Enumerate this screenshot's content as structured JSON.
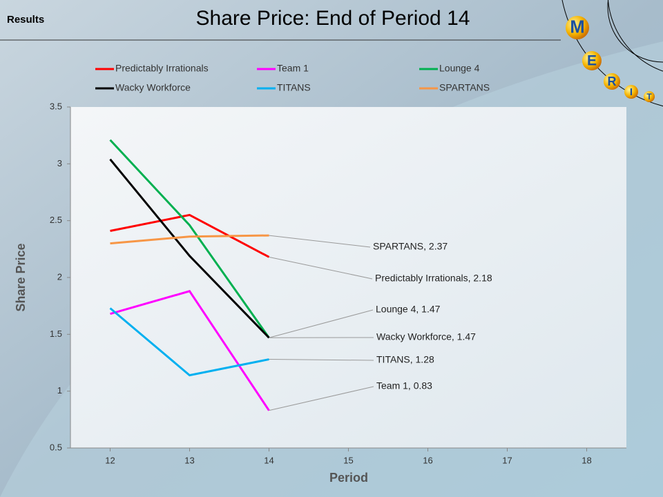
{
  "header": {
    "label": "Results"
  },
  "logo": [
    "M",
    "E",
    "R",
    "I",
    "T"
  ],
  "chart_data": {
    "type": "line",
    "title": "Share Price: End of Period 14",
    "xlabel": "Period",
    "ylabel": "Share Price",
    "x": [
      12,
      13,
      14,
      15,
      16,
      17,
      18
    ],
    "xlim": [
      11.5,
      18.5
    ],
    "xticks": [
      12,
      13,
      14,
      15,
      16,
      17,
      18
    ],
    "ylim": [
      0.5,
      3.5
    ],
    "yticks": [
      0.5,
      1,
      1.5,
      2,
      2.5,
      3,
      3.5
    ],
    "series": [
      {
        "name": "Predictably Irrationals",
        "color": "#ff0000",
        "values": [
          2.41,
          2.55,
          2.18,
          null,
          null,
          null,
          null
        ],
        "value_labels": [
          null,
          null,
          "Predictably Irrationals,  2.18",
          null,
          null,
          null,
          null
        ]
      },
      {
        "name": "Team 1",
        "color": "#ff00ff",
        "values": [
          1.68,
          1.88,
          0.83,
          null,
          null,
          null,
          null
        ],
        "value_labels": [
          null,
          null,
          "Team 1, 0.83",
          null,
          null,
          null,
          null
        ]
      },
      {
        "name": "Lounge 4",
        "color": "#00b050",
        "values": [
          3.21,
          2.46,
          1.47,
          null,
          null,
          null,
          null
        ],
        "value_labels": [
          null,
          null,
          "Lounge 4, 1.47",
          null,
          null,
          null,
          null
        ]
      },
      {
        "name": "Wacky Workforce",
        "color": "#000000",
        "values": [
          3.04,
          2.19,
          1.47,
          null,
          null,
          null,
          null
        ],
        "value_labels": [
          null,
          null,
          "Wacky Workforce, 1.47",
          null,
          null,
          null,
          null
        ]
      },
      {
        "name": "TITANS",
        "color": "#00b0f0",
        "values": [
          1.73,
          1.14,
          1.28,
          null,
          null,
          null,
          null
        ],
        "value_labels": [
          null,
          null,
          "TITANS,  1.28",
          null,
          null,
          null,
          null
        ]
      },
      {
        "name": "SPARTANS",
        "color": "#f79646",
        "values": [
          2.3,
          2.36,
          2.37,
          null,
          null,
          null,
          null
        ],
        "value_labels": [
          null,
          null,
          "SPARTANS, 2.37",
          null,
          null,
          null,
          null
        ]
      }
    ]
  }
}
